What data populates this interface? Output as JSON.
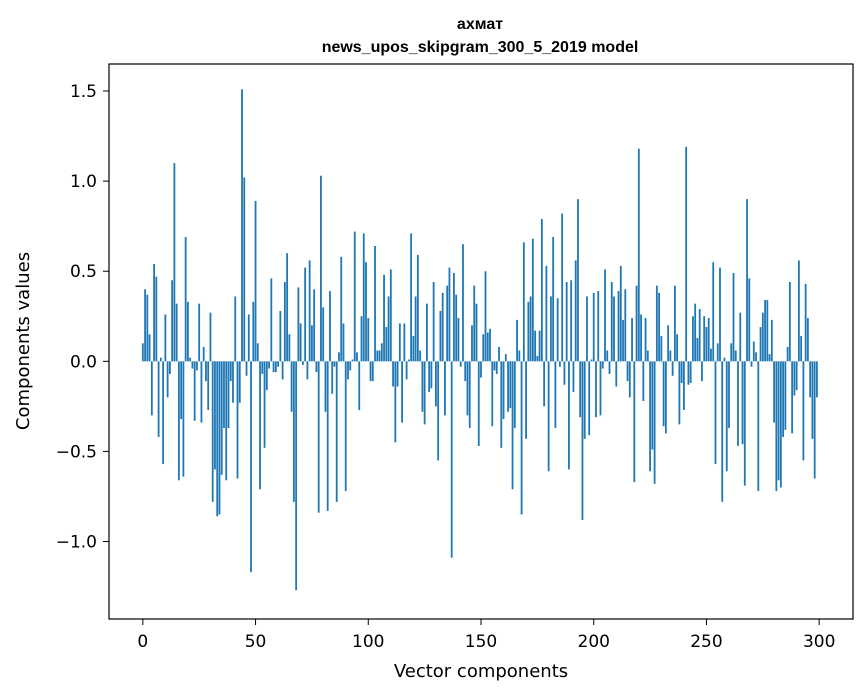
{
  "chart_data": {
    "type": "bar",
    "title": "ахмат",
    "subtitle": "news_upos_skipgram_300_5_2019 model",
    "xlabel": "Vector components",
    "ylabel": "Components values",
    "xlim": [
      -15,
      315
    ],
    "ylim": [
      -1.43,
      1.65
    ],
    "xticks": [
      0,
      50,
      100,
      150,
      200,
      250,
      300
    ],
    "xtick_labels": [
      "0",
      "50",
      "100",
      "150",
      "200",
      "250",
      "300"
    ],
    "yticks": [
      -1.0,
      -0.5,
      0.0,
      0.5,
      1.0,
      1.5
    ],
    "ytick_labels": [
      "−1.0",
      "−0.5",
      "0.0",
      "0.5",
      "1.0",
      "1.5"
    ],
    "grid": false,
    "bar_color": "#1f77b4",
    "values": [
      0.1,
      0.4,
      0.37,
      0.15,
      -0.3,
      0.54,
      0.47,
      -0.42,
      0.02,
      -0.57,
      0.26,
      -0.2,
      -0.07,
      0.45,
      1.1,
      0.32,
      -0.66,
      -0.32,
      -0.64,
      0.69,
      0.33,
      0.02,
      -0.04,
      -0.33,
      -0.05,
      0.32,
      -0.34,
      0.08,
      -0.11,
      -0.27,
      0.27,
      -0.78,
      -0.6,
      -0.86,
      -0.85,
      -0.63,
      -0.37,
      -0.66,
      -0.37,
      -0.11,
      -0.23,
      0.36,
      -0.65,
      -0.23,
      1.51,
      1.02,
      -0.08,
      0.26,
      -1.17,
      0.33,
      0.89,
      0.1,
      -0.71,
      -0.07,
      -0.48,
      -0.16,
      -0.04,
      0.46,
      -0.06,
      -0.06,
      -0.03,
      0.28,
      -0.1,
      0.44,
      0.6,
      0.15,
      -0.28,
      -0.78,
      -1.27,
      0.41,
      0.21,
      -0.02,
      0.52,
      -0.1,
      0.56,
      0.2,
      0.4,
      -0.06,
      -0.84,
      1.03,
      0.3,
      -0.28,
      -0.83,
      0.39,
      -0.18,
      -0.03,
      -0.78,
      0.05,
      0.58,
      0.21,
      -0.72,
      -0.1,
      -0.05,
      0.01,
      0.72,
      0.05,
      -0.27,
      0.25,
      0.71,
      0.55,
      0.24,
      -0.11,
      -0.11,
      0.64,
      0.06,
      0.06,
      0.1,
      0.48,
      0.19,
      0.36,
      0.51,
      -0.14,
      -0.45,
      -0.14,
      0.21,
      -0.34,
      0.21,
      -0.1,
      0.01,
      0.71,
      0.14,
      0.36,
      0.59,
      0.06,
      -0.28,
      -0.35,
      0.32,
      -0.17,
      -0.15,
      0.44,
      -0.25,
      -0.55,
      0.28,
      0.38,
      -0.3,
      0.42,
      0.52,
      -1.09,
      0.49,
      0.37,
      0.24,
      -0.03,
      0.65,
      -0.11,
      -0.3,
      -0.37,
      0.2,
      0.42,
      0.32,
      -0.47,
      -0.09,
      0.15,
      0.5,
      0.16,
      0.18,
      -0.36,
      -0.05,
      -0.07,
      0.08,
      -0.48,
      -0.32,
      0.04,
      -0.28,
      -0.26,
      -0.71,
      -0.37,
      0.23,
      0.06,
      -0.85,
      0.66,
      -0.43,
      0.33,
      0.36,
      0.68,
      0.17,
      0.03,
      0.17,
      0.79,
      -0.25,
      0.53,
      -0.61,
      0.36,
      0.69,
      -0.37,
      0.35,
      -0.03,
      0.82,
      -0.13,
      0.44,
      -0.6,
      0.45,
      -0.17,
      0.56,
      0.9,
      -0.31,
      -0.88,
      -0.43,
      0.36,
      -0.41,
      0.01,
      0.38,
      -0.31,
      0.39,
      -0.3,
      -0.04,
      0.51,
      0.06,
      -0.07,
      0.44,
      0.36,
      -0.14,
      0.39,
      0.53,
      0.23,
      0.4,
      -0.11,
      -0.2,
      0.24,
      -0.67,
      0.42,
      1.18,
      0.26,
      -0.22,
      0.24,
      0.06,
      -0.61,
      -0.49,
      -0.68,
      0.42,
      0.38,
      0.14,
      -0.36,
      -0.4,
      0.2,
      0.06,
      -0.08,
      0.42,
      0.15,
      -0.35,
      -0.12,
      -0.27,
      1.19,
      -0.13,
      -0.12,
      0.25,
      0.32,
      0.13,
      0.29,
      -0.11,
      0.25,
      0.19,
      0.24,
      0.07,
      0.55,
      -0.57,
      0.1,
      0.52,
      -0.78,
      0.02,
      -0.61,
      -0.37,
      0.1,
      0.49,
      0.06,
      -0.47,
      0.27,
      -0.46,
      -0.69,
      0.9,
      0.46,
      -0.03,
      0.11,
      0.05,
      -0.72,
      0.19,
      0.27,
      0.34,
      0.34,
      0.04,
      0.23,
      -0.34,
      -0.72,
      -0.66,
      -0.7,
      -0.42,
      -0.38,
      0.08,
      0.44,
      -0.4,
      -0.19,
      -0.16,
      0.56,
      0.14,
      -0.55,
      0.43,
      0.24,
      -0.2,
      -0.43,
      -0.65,
      -0.2
    ]
  }
}
